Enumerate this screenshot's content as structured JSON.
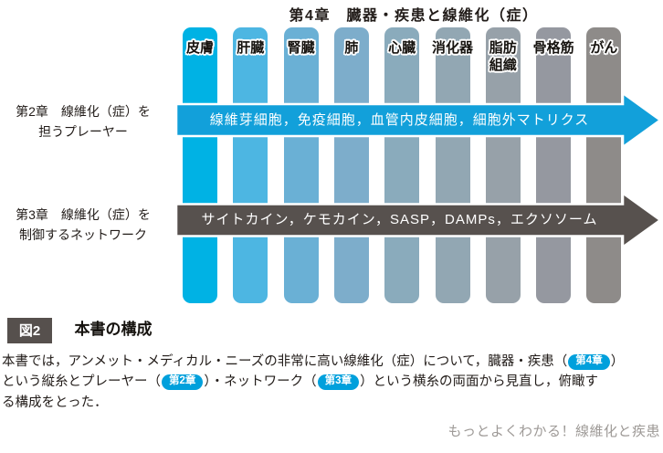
{
  "diagram": {
    "title": "第4章　臓器・疾患と線維化（症）",
    "bars": [
      {
        "label": "皮膚",
        "color": "#00b2e4"
      },
      {
        "label": "肝臓",
        "color": "#4db6e2"
      },
      {
        "label": "腎臓",
        "color": "#6ab0d5"
      },
      {
        "label": "肺",
        "color": "#7dadcb"
      },
      {
        "label": "心臓",
        "color": "#8aabbc"
      },
      {
        "label": "消化器",
        "color": "#92a7b3"
      },
      {
        "label": "脂肪\n組織",
        "color": "#97a1a9"
      },
      {
        "label": "骨格筋",
        "color": "#9598a0"
      },
      {
        "label": "がん",
        "color": "#8e8b89"
      }
    ],
    "rows": [
      {
        "label_line1": "第2章　線維化（症）を",
        "label_line2": "担うプレーヤー",
        "arrow_text": "線維芽細胞，免疫細胞，血管内皮細胞，細胞外マトリクス",
        "arrow_color": "#12a0da"
      },
      {
        "label_line1": "第3章　線維化（症）を",
        "label_line2": "制御するネットワーク",
        "arrow_text": "サイトカイン，ケモカイン，SASP，DAMPs，エクソソーム",
        "arrow_color": "#57514e"
      }
    ]
  },
  "figure": {
    "badge": "図2",
    "badge_color": "#56504d",
    "caption_title": "本書の構成",
    "pill_color": "#00a0dc",
    "lines": [
      [
        {
          "t": "text",
          "v": "本書では，アンメット・メディカル・ニーズの非常に高い線維化（症）について，臓器・疾患（"
        },
        {
          "t": "pill",
          "v": "第4章"
        },
        {
          "t": "text",
          "v": "）"
        }
      ],
      [
        {
          "t": "text",
          "v": "という縦糸とプレーヤー（"
        },
        {
          "t": "pill",
          "v": "第2章"
        },
        {
          "t": "text",
          "v": "）・ネットワーク（"
        },
        {
          "t": "pill",
          "v": "第3章"
        },
        {
          "t": "text",
          "v": "）という横糸の両面から見直し，俯瞰す"
        }
      ],
      [
        {
          "t": "text",
          "v": "る構成をとった．"
        }
      ]
    ]
  },
  "footer": "もっとよくわかる！線維化と疾患"
}
